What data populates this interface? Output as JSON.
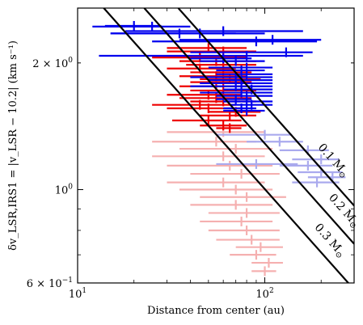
{
  "chart_data": {
    "type": "scatter",
    "xscale": "log",
    "yscale": "log",
    "xlim": [
      10,
      300
    ],
    "ylim": [
      0.6,
      2.7
    ],
    "xlabel": "Distance from center (au)",
    "ylabel": "δv_LSR,IRS1 = |v_LSR − 10.2| (km s⁻¹)",
    "xticks": [
      {
        "value": 10,
        "base": "10",
        "exp": "1",
        "label": "10^1"
      },
      {
        "value": 100,
        "base": "10",
        "exp": "2",
        "label": "10^2"
      }
    ],
    "yticks": [
      {
        "value": 0.6,
        "mant": "6 × 10",
        "exp": "−1",
        "label": "6 × 10^−1"
      },
      {
        "value": 1.0,
        "mant": "10",
        "exp": "0",
        "label": "10^0"
      },
      {
        "value": 2.0,
        "mant": "2 × 10",
        "exp": "0",
        "label": "2 × 10^0"
      }
    ],
    "grid": false,
    "colors": {
      "blue": "#0000ee",
      "red": "#ee0000",
      "light_blue": "#aaaaee",
      "light_red": "#f5b0b0",
      "curve": "#000000"
    },
    "mass_curves": [
      {
        "label": "0.3 M⊙",
        "mass_label": "0.3",
        "unit": "M",
        "sun": "⊙",
        "points": [
          [
            13.8,
            2.7
          ],
          [
            300,
            0.579
          ]
        ]
      },
      {
        "label": "0.2 M⊙",
        "mass_label": "0.2",
        "unit": "M",
        "sun": "⊙",
        "points": [
          [
            22.7,
            2.7
          ],
          [
            300,
            0.743
          ]
        ]
      },
      {
        "label": "0.1 M⊙",
        "mass_label": "0.1",
        "unit": "M",
        "sun": "⊙",
        "points": [
          [
            34.5,
            2.7
          ],
          [
            300,
            0.916
          ]
        ]
      }
    ],
    "series": [
      {
        "color_key": "blue",
        "points": [
          [
            20,
            2.45,
            14,
            28
          ],
          [
            25,
            2.44,
            12,
            40
          ],
          [
            35,
            2.35,
            15,
            70
          ],
          [
            45,
            2.35,
            15,
            100
          ],
          [
            60,
            2.38,
            18,
            160
          ],
          [
            90,
            2.25,
            25,
            190
          ],
          [
            110,
            2.27,
            35,
            200
          ],
          [
            130,
            2.12,
            40,
            180
          ],
          [
            80,
            2.08,
            13,
            160
          ],
          [
            60,
            2.05,
            40,
            85
          ],
          [
            70,
            2.02,
            45,
            100
          ],
          [
            80,
            1.95,
            50,
            110
          ],
          [
            75,
            1.92,
            55,
            100
          ],
          [
            80,
            1.88,
            55,
            110
          ],
          [
            70,
            1.85,
            40,
            110
          ],
          [
            75,
            1.82,
            50,
            110
          ],
          [
            75,
            1.79,
            45,
            110
          ],
          [
            70,
            1.76,
            40,
            110
          ],
          [
            85,
            1.73,
            60,
            110
          ],
          [
            75,
            1.7,
            45,
            110
          ],
          [
            80,
            1.67,
            55,
            110
          ],
          [
            70,
            1.64,
            55,
            85
          ],
          [
            80,
            1.62,
            60,
            110
          ],
          [
            85,
            1.59,
            65,
            110
          ],
          [
            75,
            1.56,
            60,
            90
          ],
          [
            80,
            1.54,
            60,
            100
          ]
        ]
      },
      {
        "color_key": "red",
        "points": [
          [
            50,
            2.17,
            30,
            80
          ],
          [
            60,
            2.13,
            30,
            90
          ],
          [
            45,
            2.06,
            25,
            80
          ],
          [
            55,
            2.02,
            35,
            90
          ],
          [
            60,
            1.98,
            38,
            90
          ],
          [
            45,
            1.94,
            30,
            70
          ],
          [
            60,
            1.9,
            40,
            85
          ],
          [
            55,
            1.86,
            35,
            80
          ],
          [
            65,
            1.83,
            45,
            95
          ],
          [
            60,
            1.8,
            40,
            85
          ],
          [
            55,
            1.76,
            35,
            80
          ],
          [
            60,
            1.72,
            40,
            90
          ],
          [
            50,
            1.68,
            30,
            75
          ],
          [
            55,
            1.65,
            35,
            85
          ],
          [
            60,
            1.62,
            40,
            90
          ],
          [
            45,
            1.59,
            25,
            70
          ],
          [
            50,
            1.56,
            30,
            75
          ],
          [
            70,
            1.53,
            50,
            95
          ],
          [
            65,
            1.5,
            45,
            90
          ],
          [
            50,
            1.46,
            32,
            75
          ],
          [
            60,
            1.42,
            45,
            80
          ],
          [
            65,
            1.4,
            55,
            75
          ]
        ]
      },
      {
        "color_key": "light_blue",
        "points": [
          [
            100,
            1.35,
            55,
            140
          ],
          [
            120,
            1.3,
            80,
            160
          ],
          [
            170,
            1.24,
            120,
            220
          ],
          [
            200,
            1.18,
            140,
            250
          ],
          [
            170,
            1.14,
            120,
            230
          ],
          [
            200,
            1.1,
            150,
            260
          ],
          [
            230,
            1.07,
            170,
            270
          ],
          [
            190,
            1.04,
            140,
            250
          ],
          [
            90,
            1.15,
            55,
            150
          ]
        ]
      },
      {
        "color_key": "light_red",
        "points": [
          [
            60,
            1.37,
            30,
            100
          ],
          [
            55,
            1.3,
            25,
            90
          ],
          [
            70,
            1.25,
            35,
            110
          ],
          [
            60,
            1.2,
            25,
            100
          ],
          [
            65,
            1.14,
            30,
            110
          ],
          [
            75,
            1.09,
            40,
            120
          ],
          [
            60,
            1.04,
            30,
            100
          ],
          [
            70,
            1.0,
            35,
            110
          ],
          [
            80,
            0.96,
            45,
            130
          ],
          [
            70,
            0.92,
            40,
            110
          ],
          [
            80,
            0.88,
            50,
            120
          ],
          [
            75,
            0.84,
            45,
            110
          ],
          [
            80,
            0.8,
            50,
            120
          ],
          [
            85,
            0.76,
            55,
            120
          ],
          [
            95,
            0.73,
            70,
            125
          ],
          [
            90,
            0.7,
            65,
            115
          ],
          [
            105,
            0.67,
            85,
            125
          ],
          [
            100,
            0.64,
            85,
            115
          ]
        ]
      }
    ]
  }
}
